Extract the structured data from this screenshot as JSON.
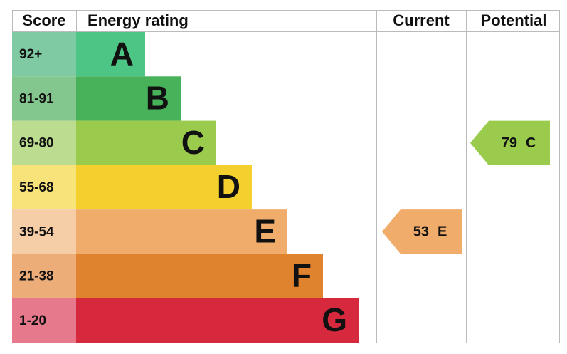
{
  "chart_data": {
    "type": "epc",
    "headers": {
      "score": "Score",
      "rating": "Energy rating",
      "current": "Current",
      "potential": "Potential"
    },
    "bands": [
      {
        "score": "92+",
        "letter": "A",
        "color": "#4dc584",
        "light": "#7fc9a3"
      },
      {
        "score": "81-91",
        "letter": "B",
        "color": "#47b25a",
        "light": "#83c68e"
      },
      {
        "score": "69-80",
        "letter": "C",
        "color": "#9acb4d",
        "light": "#bcdd90"
      },
      {
        "score": "55-68",
        "letter": "D",
        "color": "#f4d02e",
        "light": "#f8e27a"
      },
      {
        "score": "39-54",
        "letter": "E",
        "color": "#f0ac6b",
        "light": "#f5cda6"
      },
      {
        "score": "21-38",
        "letter": "F",
        "color": "#e0832f",
        "light": "#edad79"
      },
      {
        "score": "1-20",
        "letter": "G",
        "color": "#d7293e",
        "light": "#e6798b"
      }
    ],
    "current": {
      "value": 53,
      "rating": "E"
    },
    "potential": {
      "value": 79,
      "rating": "C"
    }
  }
}
